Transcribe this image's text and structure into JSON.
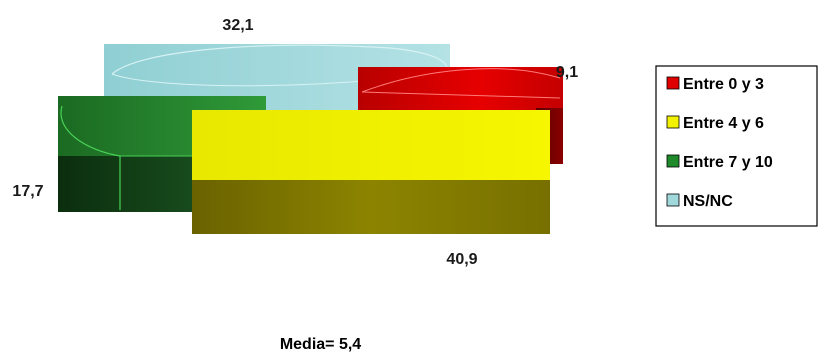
{
  "chart_data": {
    "type": "bar",
    "series": [
      {
        "name": "Entre 0 y 3",
        "value": 9.1,
        "label": "9,1",
        "color": "#e00000"
      },
      {
        "name": "Entre 4 y 6",
        "value": 40.9,
        "label": "40,9",
        "color": "#f2f200"
      },
      {
        "name": "Entre 7 y 10",
        "value": 17.7,
        "label": "17,7",
        "color": "#1e8a2a"
      },
      {
        "name": "NS/NC",
        "value": 32.1,
        "label": "32,1",
        "color": "#a0d8dc"
      }
    ],
    "legend_position": "right",
    "annotation": "Media= 5,4"
  }
}
